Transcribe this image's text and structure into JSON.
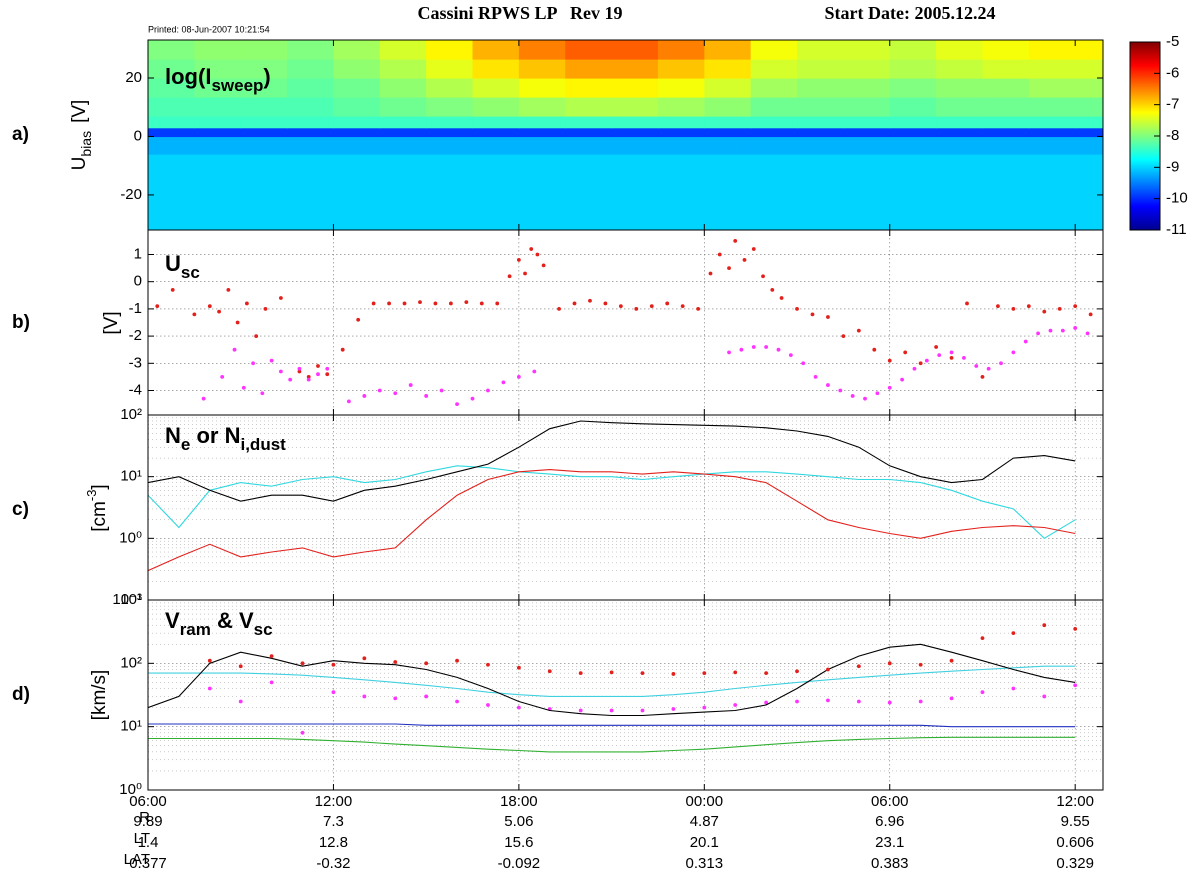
{
  "header": {
    "printed": "Printed: 08-Jun-2007 10:21:54",
    "title": "Cassini RPWS LP   Rev 19",
    "start_date": "Start Date: 2005.12.24"
  },
  "panel_letters": [
    "a)",
    "b)",
    "c)",
    "d)"
  ],
  "ephemeris": [
    {
      "name": "R",
      "values": [
        9.89,
        7.3,
        5.06,
        4.87,
        6.96,
        9.55
      ]
    },
    {
      "name": "LT",
      "values": [
        1.4,
        12.8,
        15.6,
        20.1,
        23.1,
        0.606
      ]
    },
    {
      "name": "LAT",
      "values": [
        0.377,
        -0.32,
        -0.092,
        0.313,
        0.383,
        0.329
      ]
    }
  ],
  "chart_data": [
    {
      "type": "heatmap",
      "label": [
        "log(I",
        "sweep",
        ")"
      ],
      "ylabel": [
        "U",
        "bias",
        "[V]"
      ],
      "xlim": [
        0,
        30.9
      ],
      "xticks": [
        0,
        6,
        12,
        18,
        24,
        30
      ],
      "ylim": [
        -32,
        33
      ],
      "yticks": [
        -20,
        0,
        20
      ],
      "xbins": [
        0,
        1.5,
        3,
        4.5,
        6,
        7.5,
        9,
        10.5,
        12,
        13.5,
        15,
        16.5,
        18,
        19.5,
        21,
        22.5,
        24,
        25.5,
        27,
        28.5,
        30,
        30.9
      ],
      "ybins": [
        -32,
        -25.5,
        -19,
        -12.5,
        -6,
        0,
        3,
        7,
        13.5,
        20,
        26.5,
        33
      ],
      "z": [
        [
          -9,
          -9,
          -9,
          -9,
          -9,
          -9,
          -9,
          -9,
          -9,
          -9,
          -9,
          -9,
          -9,
          -9,
          -9,
          -9,
          -9,
          -9,
          -9,
          -9,
          -9
        ],
        [
          -9,
          -9,
          -9,
          -9,
          -9,
          -9,
          -9,
          -9,
          -9,
          -9,
          -9,
          -9,
          -9,
          -9,
          -9,
          -9,
          -9,
          -9,
          -9,
          -9,
          -9
        ],
        [
          -9,
          -9,
          -9,
          -9,
          -9,
          -9,
          -9,
          -9,
          -9,
          -9,
          -9,
          -9,
          -9,
          -9,
          -9,
          -9,
          -9,
          -9,
          -9,
          -9,
          -9
        ],
        [
          -9,
          -9,
          -9,
          -9,
          -9,
          -9,
          -9,
          -9,
          -9,
          -9,
          -9,
          -9,
          -9,
          -9,
          -9,
          -9,
          -9,
          -9,
          -9,
          -9,
          -9
        ],
        [
          -9.2,
          -9.2,
          -9.2,
          -9.2,
          -9.2,
          -9.2,
          -9.2,
          -9.2,
          -9.2,
          -9.2,
          -9.2,
          -9.2,
          -9.2,
          -9.2,
          -9.2,
          -9.2,
          -9.2,
          -9.2,
          -9.2,
          -9.2,
          -9.2
        ],
        [
          -9.9,
          -9.9,
          -9.9,
          -9.9,
          -9.9,
          -9.9,
          -9.9,
          -9.9,
          -9.9,
          -9.9,
          -9.9,
          -9.9,
          -9.9,
          -9.9,
          -9.9,
          -9.9,
          -9.9,
          -9.9,
          -9.9,
          -9.9,
          -9.9
        ],
        [
          -8.4,
          -8.4,
          -8.4,
          -8.4,
          -8.4,
          -8.4,
          -8.4,
          -8.4,
          -8.4,
          -8.4,
          -8.4,
          -8.4,
          -8.4,
          -8.4,
          -8.4,
          -8.4,
          -8.4,
          -8.4,
          -8.4,
          -8.4,
          -8.4
        ],
        [
          -8.3,
          -8.3,
          -8.3,
          -8.3,
          -8.2,
          -8.1,
          -8,
          -7.9,
          -7.8,
          -7.7,
          -7.7,
          -7.8,
          -7.9,
          -8.1,
          -8.1,
          -8.1,
          -8.2,
          -8.1,
          -8.1,
          -8.1,
          -8.1
        ],
        [
          -8.2,
          -8.1,
          -8.1,
          -8.2,
          -8.1,
          -7.9,
          -7.7,
          -7.5,
          -7.3,
          -7.2,
          -7.2,
          -7.3,
          -7.5,
          -7.8,
          -7.9,
          -7.9,
          -8,
          -7.9,
          -7.9,
          -7.8,
          -7.8
        ],
        [
          -8.1,
          -8,
          -8,
          -8.1,
          -7.9,
          -7.7,
          -7.4,
          -7.1,
          -6.9,
          -6.7,
          -6.7,
          -6.9,
          -7.1,
          -7.5,
          -7.6,
          -7.6,
          -7.7,
          -7.6,
          -7.5,
          -7.5,
          -7.5
        ],
        [
          -8,
          -7.9,
          -7.9,
          -8,
          -7.8,
          -7.5,
          -7.2,
          -6.8,
          -6.5,
          -6.3,
          -6.3,
          -6.5,
          -6.8,
          -7.3,
          -7.5,
          -7.5,
          -7.6,
          -7.4,
          -7.3,
          -7.2,
          -7.2
        ]
      ],
      "colorbar": {
        "lim": [
          -11,
          -5
        ],
        "ticks": [
          -5,
          -6,
          -7,
          -8,
          -9,
          -10,
          -11
        ]
      }
    },
    {
      "type": "scatter",
      "label": [
        "U",
        "sc"
      ],
      "ylabel": [
        "[V]"
      ],
      "grid": true,
      "xlim": [
        0,
        30.9
      ],
      "xticks": [
        0,
        6,
        12,
        18,
        24,
        30
      ],
      "ylim": [
        -4.9,
        1.9
      ],
      "yticks": [
        -4,
        -3,
        -2,
        -1,
        0,
        1
      ],
      "series": [
        {
          "color": "#e3211c",
          "x": [
            0.3,
            0.8,
            1.5,
            2.0,
            2.3,
            2.6,
            2.9,
            3.2,
            3.5,
            3.8,
            4.3,
            4.9,
            5.2,
            5.5,
            5.8,
            6.3,
            6.8,
            7.3,
            7.8,
            8.3,
            8.8,
            9.3,
            9.8,
            10.3,
            10.8,
            11.3,
            11.7,
            12.0,
            12.2,
            12.4,
            12.6,
            12.8,
            13.3,
            13.8,
            14.3,
            14.8,
            15.3,
            15.8,
            16.3,
            16.8,
            17.3,
            17.8,
            18.2,
            18.5,
            18.8,
            19.0,
            19.3,
            19.6,
            19.9,
            20.2,
            20.5,
            21.0,
            21.5,
            22.0,
            22.5,
            23.0,
            23.5,
            24.0,
            24.5,
            25.0,
            25.5,
            26.0,
            26.5,
            27.0,
            27.5,
            28.0,
            28.5,
            29.0,
            29.5,
            30.0,
            30.5
          ],
          "values": [
            -0.9,
            -0.3,
            -1.2,
            -0.9,
            -1.1,
            -0.3,
            -1.5,
            -0.8,
            -2.0,
            -1.0,
            -0.6,
            -3.3,
            -3.5,
            -3.1,
            -3.4,
            -2.5,
            -1.4,
            -0.8,
            -0.8,
            -0.8,
            -0.75,
            -0.8,
            -0.8,
            -0.75,
            -0.8,
            -0.8,
            0.2,
            0.8,
            0.3,
            1.2,
            1.0,
            0.6,
            -1.0,
            -0.8,
            -0.7,
            -0.8,
            -0.9,
            -1.0,
            -0.9,
            -0.8,
            -0.9,
            -1.0,
            0.3,
            1.0,
            0.5,
            1.5,
            0.8,
            1.2,
            0.2,
            -0.3,
            -0.6,
            -1.0,
            -1.2,
            -1.3,
            -2.0,
            -1.8,
            -2.5,
            -2.9,
            -2.6,
            -3.0,
            -2.4,
            -2.8,
            -0.8,
            -3.5,
            -0.9,
            -1.0,
            -0.9,
            -1.1,
            -1.0,
            -0.9,
            -1.2
          ]
        },
        {
          "color": "#ff33ff",
          "x": [
            1.8,
            2.4,
            2.8,
            3.1,
            3.4,
            3.7,
            4.0,
            4.3,
            4.6,
            4.9,
            5.2,
            5.5,
            5.8,
            6.5,
            7.0,
            7.5,
            8.0,
            8.5,
            9.0,
            9.5,
            10.0,
            10.5,
            11.0,
            11.5,
            12.0,
            12.5,
            18.8,
            19.2,
            19.6,
            20.0,
            20.4,
            20.8,
            21.2,
            21.6,
            22.0,
            22.4,
            22.8,
            23.2,
            23.6,
            24.0,
            24.4,
            24.8,
            25.2,
            25.6,
            26.0,
            26.4,
            26.8,
            27.2,
            27.6,
            28.0,
            28.4,
            28.8,
            29.2,
            29.6,
            30.0,
            30.4
          ],
          "values": [
            -4.3,
            -3.5,
            -2.5,
            -3.9,
            -3.0,
            -4.1,
            -2.9,
            -3.3,
            -3.6,
            -3.2,
            -3.6,
            -3.4,
            -3.2,
            -4.4,
            -4.2,
            -4.0,
            -4.1,
            -3.8,
            -4.2,
            -4.0,
            -4.5,
            -4.3,
            -4.0,
            -3.7,
            -3.5,
            -3.3,
            -2.6,
            -2.5,
            -2.4,
            -2.4,
            -2.5,
            -2.7,
            -3.0,
            -3.5,
            -3.8,
            -4.0,
            -4.2,
            -4.3,
            -4.1,
            -3.9,
            -3.6,
            -3.2,
            -2.9,
            -2.7,
            -2.6,
            -2.8,
            -3.1,
            -3.2,
            -3.0,
            -2.6,
            -2.2,
            -1.9,
            -1.8,
            -1.8,
            -1.7,
            -1.9
          ]
        }
      ]
    },
    {
      "type": "line",
      "label": [
        "N",
        "e",
        " or N",
        "i,dust"
      ],
      "ylabel": [
        "[cm",
        "-3",
        "]"
      ],
      "grid": true,
      "minor_grid": true,
      "scale": "log",
      "xlim": [
        0,
        30.9
      ],
      "xticks": [
        0,
        6,
        12,
        18,
        24,
        30
      ],
      "ylim": [
        0.1,
        100
      ],
      "yticks": [
        {
          "value": 0.1,
          "label": "10⁻¹"
        },
        {
          "value": 1,
          "label": "10⁰"
        },
        {
          "value": 10,
          "label": "10¹"
        },
        {
          "value": 100,
          "label": "10²"
        }
      ],
      "x": [
        0,
        1,
        2,
        3,
        4,
        5,
        6,
        7,
        8,
        9,
        10,
        11,
        12,
        13,
        14,
        15,
        16,
        17,
        18,
        19,
        20,
        21,
        22,
        23,
        24,
        25,
        26,
        27,
        28,
        29,
        30
      ],
      "series": [
        {
          "color": "#30d8e0",
          "values": [
            5,
            1.5,
            6,
            8,
            7,
            9,
            10,
            8,
            9,
            12,
            15,
            14,
            12,
            11,
            10,
            10,
            9,
            10,
            11,
            12,
            12,
            11,
            10,
            9,
            9,
            8,
            6,
            4,
            3,
            1,
            2
          ]
        },
        {
          "color": "#000000",
          "values": [
            8,
            10,
            6,
            4,
            5,
            5,
            4,
            6,
            7,
            9,
            12,
            16,
            30,
            60,
            80,
            75,
            72,
            70,
            68,
            66,
            62,
            55,
            45,
            30,
            15,
            10,
            8,
            9,
            20,
            22,
            18
          ]
        },
        {
          "color": "#e3211c",
          "values": [
            0.3,
            0.5,
            0.8,
            0.5,
            0.6,
            0.7,
            0.5,
            0.6,
            0.7,
            2,
            5,
            9,
            12,
            13,
            12,
            12,
            11,
            12,
            11,
            10,
            8,
            4,
            2,
            1.5,
            1.2,
            1.0,
            1.3,
            1.5,
            1.6,
            1.5,
            1.2
          ]
        }
      ]
    },
    {
      "type": "line",
      "label": [
        "V",
        "ram",
        " & V",
        "sc"
      ],
      "ylabel": [
        "[km/s]"
      ],
      "grid": true,
      "minor_grid": true,
      "scale": "log",
      "xlim": [
        0,
        30.9
      ],
      "xticks": [
        {
          "value": 0,
          "label": "06:00"
        },
        {
          "value": 6,
          "label": "12:00"
        },
        {
          "value": 12,
          "label": "18:00"
        },
        {
          "value": 18,
          "label": "00:00"
        },
        {
          "value": 24,
          "label": "06:00"
        },
        {
          "value": 30,
          "label": "12:00"
        }
      ],
      "ylim": [
        1,
        1000
      ],
      "yticks": [
        {
          "value": 1,
          "label": "10⁰"
        },
        {
          "value": 10,
          "label": "10¹"
        },
        {
          "value": 100,
          "label": "10²"
        },
        {
          "value": 1000,
          "label": "10³"
        }
      ],
      "x": [
        0,
        1,
        2,
        3,
        4,
        5,
        6,
        7,
        8,
        9,
        10,
        11,
        12,
        13,
        14,
        15,
        16,
        17,
        18,
        19,
        20,
        21,
        22,
        23,
        24,
        25,
        26,
        27,
        28,
        29,
        30
      ],
      "series": [
        {
          "color": "#40d0e0",
          "mode": "lines",
          "values": [
            70,
            70,
            70,
            70,
            68,
            65,
            60,
            55,
            50,
            45,
            40,
            35,
            32,
            30,
            30,
            30,
            30,
            32,
            35,
            40,
            45,
            50,
            55,
            60,
            65,
            70,
            75,
            80,
            85,
            90,
            90
          ]
        },
        {
          "color": "#2030c0",
          "mode": "lines",
          "values": [
            11,
            11,
            11,
            11,
            11,
            11,
            11,
            11,
            11,
            10.5,
            10.5,
            10.5,
            10.5,
            10.5,
            10.5,
            10.5,
            10.5,
            10.5,
            10.5,
            10.5,
            10.5,
            10.5,
            10.5,
            10.5,
            10.5,
            10.5,
            10,
            10,
            10,
            10,
            10
          ]
        },
        {
          "color": "#30b030",
          "mode": "lines",
          "values": [
            6.5,
            6.5,
            6.5,
            6.5,
            6.5,
            6.3,
            6,
            5.7,
            5.3,
            5,
            4.7,
            4.4,
            4.2,
            4,
            4,
            4,
            4,
            4.2,
            4.4,
            4.8,
            5.2,
            5.6,
            6,
            6.3,
            6.5,
            6.7,
            6.8,
            6.8,
            6.8,
            6.8,
            6.8
          ]
        },
        {
          "color": "#ff33ff",
          "mode": "markers",
          "x": [
            2,
            3,
            4,
            5,
            6,
            7,
            8,
            9,
            10,
            11,
            12,
            13,
            14,
            15,
            16,
            17,
            18,
            19,
            20,
            21,
            22,
            23,
            24,
            25,
            26,
            27,
            28,
            29,
            30
          ],
          "values": [
            40,
            25,
            50,
            8,
            35,
            30,
            28,
            30,
            25,
            22,
            20,
            19,
            18,
            18,
            18,
            19,
            20,
            22,
            24,
            25,
            26,
            25,
            24,
            25,
            28,
            35,
            40,
            30,
            45
          ]
        },
        {
          "color": "#000000",
          "mode": "lines",
          "values": [
            20,
            30,
            100,
            150,
            120,
            90,
            110,
            100,
            95,
            80,
            60,
            40,
            25,
            18,
            16,
            15,
            15,
            16,
            17,
            18,
            22,
            40,
            80,
            130,
            180,
            200,
            150,
            110,
            80,
            60,
            50
          ]
        },
        {
          "color": "#e3211c",
          "mode": "markers",
          "x": [
            2,
            3,
            4,
            5,
            6,
            7,
            8,
            9,
            10,
            11,
            12,
            13,
            14,
            15,
            16,
            17,
            18,
            19,
            20,
            21,
            22,
            23,
            24,
            25,
            26,
            27,
            28,
            29,
            30
          ],
          "values": [
            110,
            90,
            130,
            100,
            95,
            120,
            105,
            100,
            110,
            95,
            85,
            75,
            70,
            72,
            70,
            68,
            70,
            72,
            70,
            75,
            80,
            90,
            100,
            95,
            110,
            250,
            300,
            400,
            350
          ]
        }
      ]
    }
  ]
}
